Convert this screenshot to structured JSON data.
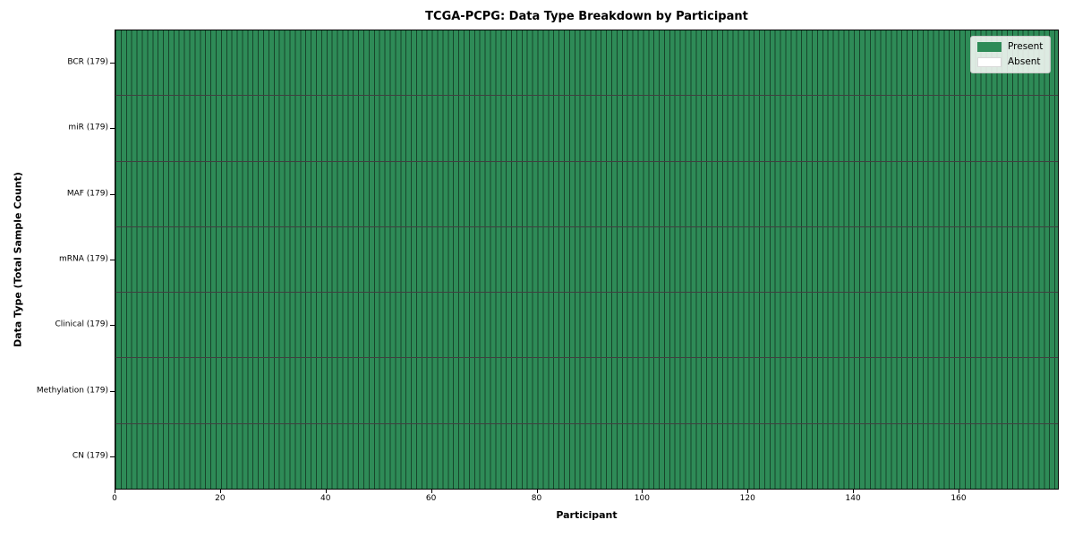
{
  "chart_data": {
    "type": "heatmap",
    "title": "TCGA-PCPG: Data Type Breakdown by Participant",
    "xlabel": "Participant",
    "ylabel": "Data Type (Total Sample Count)",
    "x_range": [
      0,
      179
    ],
    "xticks": [
      0,
      20,
      40,
      60,
      80,
      100,
      120,
      140,
      160
    ],
    "n_participants": 179,
    "rows": [
      {
        "label": "BCR (179)",
        "present": 179,
        "absent": 0
      },
      {
        "label": "miR (179)",
        "present": 179,
        "absent": 0
      },
      {
        "label": "MAF (179)",
        "present": 179,
        "absent": 0
      },
      {
        "label": "mRNA (179)",
        "present": 179,
        "absent": 0
      },
      {
        "label": "Clinical (179)",
        "present": 179,
        "absent": 0
      },
      {
        "label": "Methylation (179)",
        "present": 179,
        "absent": 0
      },
      {
        "label": "CN (179)",
        "present": 179,
        "absent": 0
      }
    ],
    "legend": {
      "position": "upper right",
      "entries": [
        {
          "label": "Present",
          "color": "#2e8b57"
        },
        {
          "label": "Absent",
          "color": "#ffffff"
        }
      ]
    },
    "colors": {
      "cell_edge": "rgba(0,0,0,0.5)",
      "row_divider": "rgba(0,0,0,0.75)",
      "spine": "#000000",
      "background": "#ffffff"
    },
    "grid": "cell-borders",
    "legend_swatch_alt_border": "#d9d9d9"
  }
}
